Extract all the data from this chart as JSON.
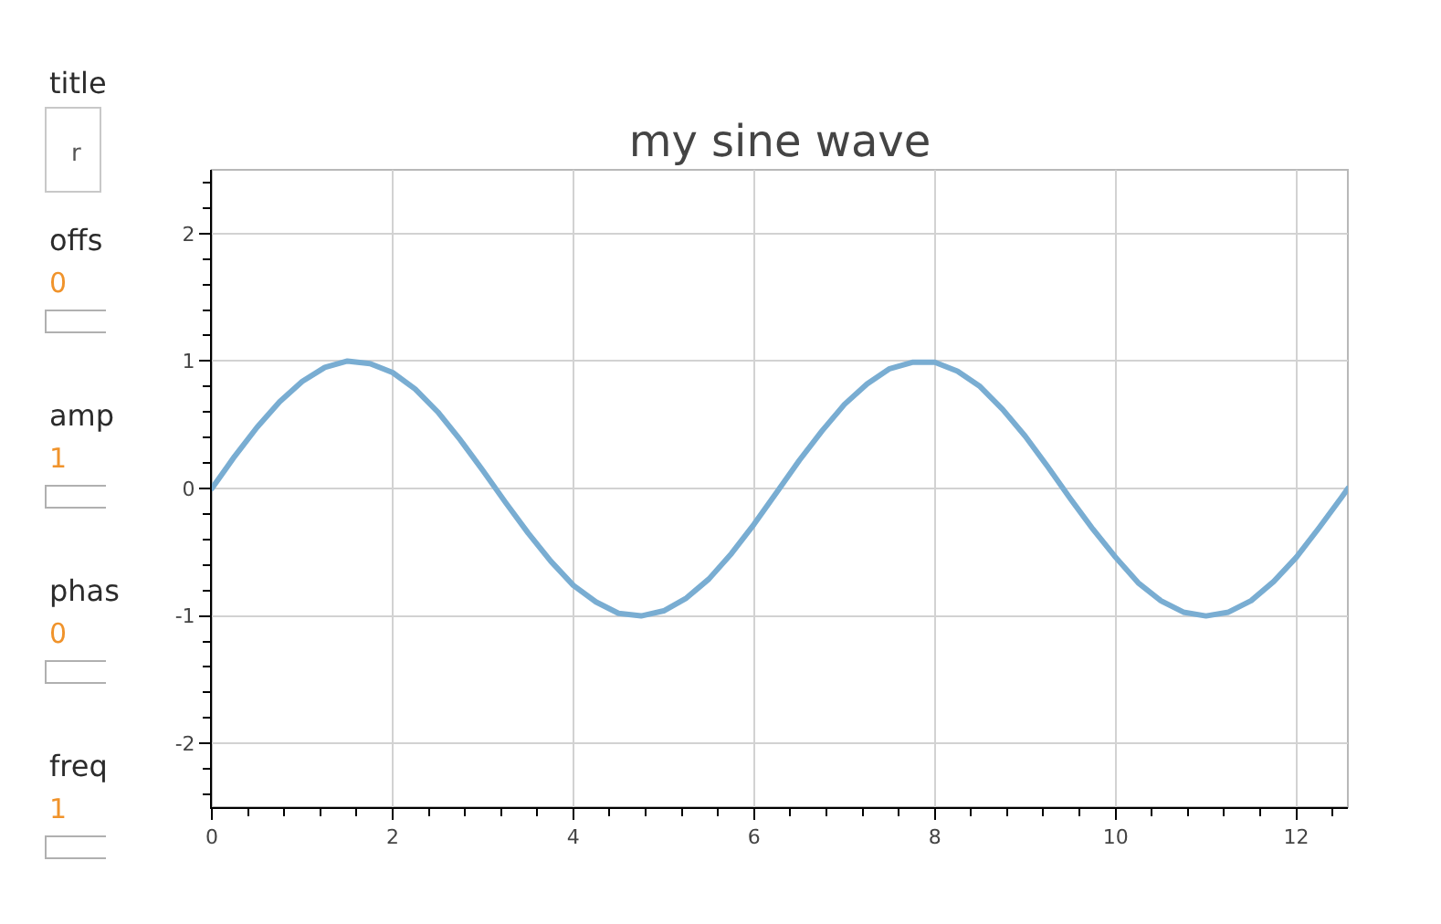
{
  "chart_data": [
    {
      "type": "other",
      "annotations": [
        "title",
        "r",
        "offs",
        "0",
        "amp",
        "1",
        "phas",
        "0",
        "freq",
        "1"
      ]
    },
    {
      "type": "line",
      "title": "my sine wave",
      "x": [
        0,
        0.25,
        0.5,
        0.75,
        1.0,
        1.25,
        1.5,
        1.75,
        2.0,
        2.25,
        2.5,
        2.75,
        3.0,
        3.25,
        3.5,
        3.75,
        4.0,
        4.25,
        4.5,
        4.75,
        5.0,
        5.25,
        5.5,
        5.75,
        6.0,
        6.25,
        6.5,
        6.75,
        7.0,
        7.25,
        7.5,
        7.75,
        8.0,
        8.25,
        8.5,
        8.75,
        9.0,
        9.25,
        9.5,
        9.75,
        10.0,
        10.25,
        10.5,
        10.75,
        11.0,
        11.25,
        11.5,
        11.75,
        12.0,
        12.25,
        12.5,
        12.57
      ],
      "series": [
        {
          "color": "#79add2",
          "values": [
            0,
            0.25,
            0.48,
            0.68,
            0.84,
            0.95,
            1.0,
            0.98,
            0.91,
            0.78,
            0.6,
            0.38,
            0.14,
            -0.11,
            -0.35,
            -0.57,
            -0.76,
            -0.89,
            -0.98,
            -1.0,
            -0.96,
            -0.86,
            -0.71,
            -0.51,
            -0.28,
            -0.03,
            0.22,
            0.45,
            0.66,
            0.82,
            0.94,
            0.99,
            0.99,
            0.92,
            0.8,
            0.62,
            0.41,
            0.17,
            -0.08,
            -0.32,
            -0.54,
            -0.74,
            -0.88,
            -0.97,
            -1.0,
            -0.97,
            -0.88,
            -0.73,
            -0.54,
            -0.31,
            -0.07,
            0
          ]
        }
      ],
      "xlim": [
        0,
        12.57
      ],
      "ylim": [
        -2.5,
        2.5
      ],
      "xticks": [
        0,
        2,
        4,
        6,
        8,
        10,
        12
      ],
      "yticks": [
        -2,
        -1,
        0,
        1,
        2
      ],
      "grid": true
    }
  ]
}
